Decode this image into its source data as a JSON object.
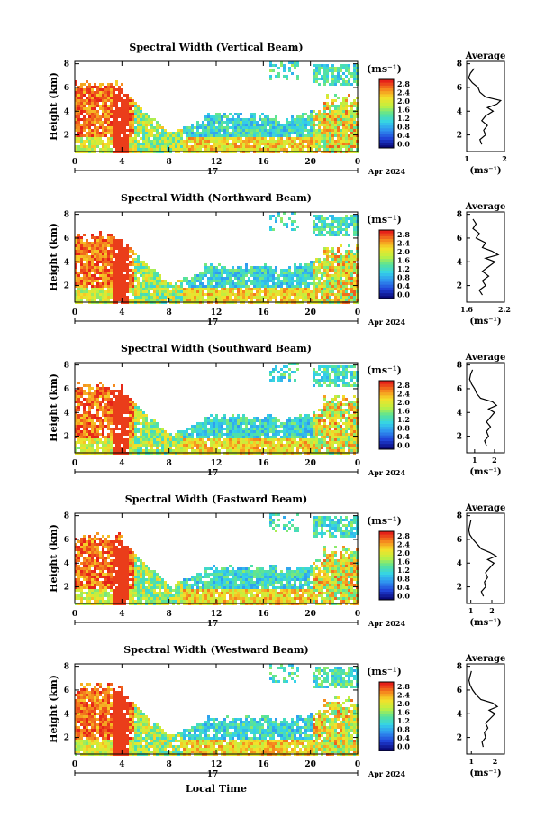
{
  "figure": {
    "xlabel": "Local Time",
    "date_label": "17",
    "date_right": "Apr 2024",
    "colorbar_unit": "(ms⁻¹)",
    "avg_title": "Average",
    "avg_unit": "(ms⁻¹)",
    "ylabel": "Height (km)"
  },
  "chart_data": [
    {
      "type": "heatmap",
      "title": "Spectral Width (Vertical Beam)",
      "ylabel": "Height (km)",
      "x_ticks": [
        "0",
        "4",
        "8",
        "12",
        "16",
        "20",
        "0"
      ],
      "y_ticks": [
        "2",
        "4",
        "6",
        "8"
      ],
      "xlim": [
        0,
        24
      ],
      "ylim": [
        0.6,
        8.2
      ],
      "colorbar": {
        "ticks": [
          "0.0",
          "0.4",
          "0.8",
          "1.2",
          "1.6",
          "2.0",
          "2.4",
          "2.8"
        ],
        "range": [
          0,
          3.0
        ]
      },
      "average": {
        "x_ticks": [
          "1",
          "2"
        ],
        "xlim": [
          1,
          2
        ],
        "y_ticks": [
          "2",
          "4",
          "6",
          "8"
        ],
        "profile": [
          [
            1.4,
            1.2
          ],
          [
            1.35,
            1.6
          ],
          [
            1.5,
            2.0
          ],
          [
            1.45,
            2.4
          ],
          [
            1.55,
            2.8
          ],
          [
            1.4,
            3.2
          ],
          [
            1.5,
            3.6
          ],
          [
            1.7,
            4.0
          ],
          [
            1.55,
            4.3
          ],
          [
            1.8,
            4.6
          ],
          [
            1.9,
            4.9
          ],
          [
            1.5,
            5.2
          ],
          [
            1.35,
            5.6
          ],
          [
            1.3,
            6.0
          ],
          [
            1.15,
            6.4
          ],
          [
            1.05,
            6.8
          ],
          [
            1.1,
            7.2
          ],
          [
            1.2,
            7.6
          ]
        ]
      }
    },
    {
      "type": "heatmap",
      "title": "Spectral Width (Northward Beam)",
      "ylabel": "Height (km)",
      "x_ticks": [
        "0",
        "4",
        "8",
        "12",
        "16",
        "20",
        "0"
      ],
      "y_ticks": [
        "2",
        "4",
        "6",
        "8"
      ],
      "xlim": [
        0,
        24
      ],
      "ylim": [
        0.6,
        8.2
      ],
      "colorbar": {
        "ticks": [
          "0.0",
          "0.4",
          "0.8",
          "1.2",
          "1.6",
          "2.0",
          "2.4",
          "2.8"
        ],
        "range": [
          0,
          3.0
        ]
      },
      "average": {
        "x_ticks": [
          "1.6",
          "2.2"
        ],
        "xlim": [
          1.6,
          2.2
        ],
        "y_ticks": [
          "2",
          "4",
          "6",
          "8"
        ],
        "profile": [
          [
            1.85,
            1.2
          ],
          [
            1.8,
            1.6
          ],
          [
            1.9,
            2.0
          ],
          [
            1.85,
            2.4
          ],
          [
            1.95,
            2.8
          ],
          [
            1.85,
            3.2
          ],
          [
            1.95,
            3.6
          ],
          [
            2.05,
            4.0
          ],
          [
            1.9,
            4.3
          ],
          [
            2.1,
            4.6
          ],
          [
            2.0,
            4.9
          ],
          [
            1.85,
            5.2
          ],
          [
            1.9,
            5.6
          ],
          [
            1.75,
            6.0
          ],
          [
            1.8,
            6.4
          ],
          [
            1.7,
            6.8
          ],
          [
            1.75,
            7.2
          ],
          [
            1.7,
            7.6
          ]
        ]
      }
    },
    {
      "type": "heatmap",
      "title": "Spectral Width (Southward Beam)",
      "ylabel": "Height (km)",
      "x_ticks": [
        "0",
        "4",
        "8",
        "12",
        "16",
        "20",
        "0"
      ],
      "y_ticks": [
        "2",
        "4",
        "6",
        "8"
      ],
      "xlim": [
        0,
        24
      ],
      "ylim": [
        0.6,
        8.2
      ],
      "colorbar": {
        "ticks": [
          "0.0",
          "0.4",
          "0.8",
          "1.2",
          "1.6",
          "2.0",
          "2.4",
          "2.8"
        ],
        "range": [
          0,
          3.0
        ]
      },
      "average": {
        "x_ticks": [
          "1",
          "2"
        ],
        "xlim": [
          0.6,
          2.5
        ],
        "y_ticks": [
          "2",
          "4",
          "6",
          "8"
        ],
        "profile": [
          [
            1.6,
            1.2
          ],
          [
            1.5,
            1.6
          ],
          [
            1.7,
            2.0
          ],
          [
            1.6,
            2.4
          ],
          [
            1.8,
            2.8
          ],
          [
            1.6,
            3.2
          ],
          [
            1.8,
            3.6
          ],
          [
            2.0,
            4.0
          ],
          [
            1.7,
            4.3
          ],
          [
            2.1,
            4.6
          ],
          [
            1.9,
            4.9
          ],
          [
            1.3,
            5.2
          ],
          [
            1.1,
            5.6
          ],
          [
            1.0,
            6.0
          ],
          [
            0.85,
            6.4
          ],
          [
            0.75,
            6.8
          ],
          [
            0.8,
            7.2
          ],
          [
            0.9,
            7.6
          ]
        ]
      }
    },
    {
      "type": "heatmap",
      "title": "Spectral Width (Eastward Beam)",
      "ylabel": "Height (km)",
      "x_ticks": [
        "0",
        "4",
        "8",
        "12",
        "16",
        "20",
        "0"
      ],
      "y_ticks": [
        "2",
        "4",
        "6",
        "8"
      ],
      "xlim": [
        0,
        24
      ],
      "ylim": [
        0.6,
        8.2
      ],
      "colorbar": {
        "ticks": [
          "0.0",
          "0.4",
          "0.8",
          "1.2",
          "1.6",
          "2.0",
          "2.4",
          "2.8"
        ],
        "range": [
          0,
          3.0
        ]
      },
      "average": {
        "x_ticks": [
          "1",
          "2"
        ],
        "xlim": [
          0.8,
          2.6
        ],
        "y_ticks": [
          "2",
          "4",
          "6",
          "8"
        ],
        "profile": [
          [
            1.6,
            1.2
          ],
          [
            1.5,
            1.6
          ],
          [
            1.7,
            2.0
          ],
          [
            1.65,
            2.4
          ],
          [
            1.8,
            2.8
          ],
          [
            1.7,
            3.2
          ],
          [
            1.9,
            3.6
          ],
          [
            2.1,
            4.0
          ],
          [
            1.8,
            4.3
          ],
          [
            2.2,
            4.6
          ],
          [
            1.9,
            4.9
          ],
          [
            1.5,
            5.2
          ],
          [
            1.3,
            5.6
          ],
          [
            1.1,
            6.0
          ],
          [
            0.95,
            6.4
          ],
          [
            0.9,
            6.8
          ],
          [
            0.95,
            7.2
          ],
          [
            1.0,
            7.6
          ]
        ]
      }
    },
    {
      "type": "heatmap",
      "title": "Spectral Width (Westward Beam)",
      "ylabel": "Height (km)",
      "x_ticks": [
        "0",
        "4",
        "8",
        "12",
        "16",
        "20",
        "0"
      ],
      "y_ticks": [
        "2",
        "4",
        "6",
        "8"
      ],
      "xlim": [
        0,
        24
      ],
      "ylim": [
        0.6,
        8.2
      ],
      "colorbar": {
        "ticks": [
          "0.0",
          "0.4",
          "0.8",
          "1.2",
          "1.6",
          "2.0",
          "2.4",
          "2.8"
        ],
        "range": [
          0,
          3.0
        ]
      },
      "average": {
        "x_ticks": [
          "1",
          "2"
        ],
        "xlim": [
          0.8,
          2.4
        ],
        "y_ticks": [
          "2",
          "4",
          "6",
          "8"
        ],
        "profile": [
          [
            1.5,
            1.2
          ],
          [
            1.45,
            1.6
          ],
          [
            1.6,
            2.0
          ],
          [
            1.55,
            2.4
          ],
          [
            1.7,
            2.8
          ],
          [
            1.6,
            3.2
          ],
          [
            1.8,
            3.6
          ],
          [
            2.0,
            4.0
          ],
          [
            1.75,
            4.3
          ],
          [
            2.1,
            4.6
          ],
          [
            1.9,
            4.9
          ],
          [
            1.4,
            5.2
          ],
          [
            1.2,
            5.6
          ],
          [
            1.05,
            6.0
          ],
          [
            0.95,
            6.4
          ],
          [
            0.9,
            6.8
          ],
          [
            0.95,
            7.2
          ],
          [
            1.0,
            7.6
          ]
        ]
      }
    }
  ]
}
